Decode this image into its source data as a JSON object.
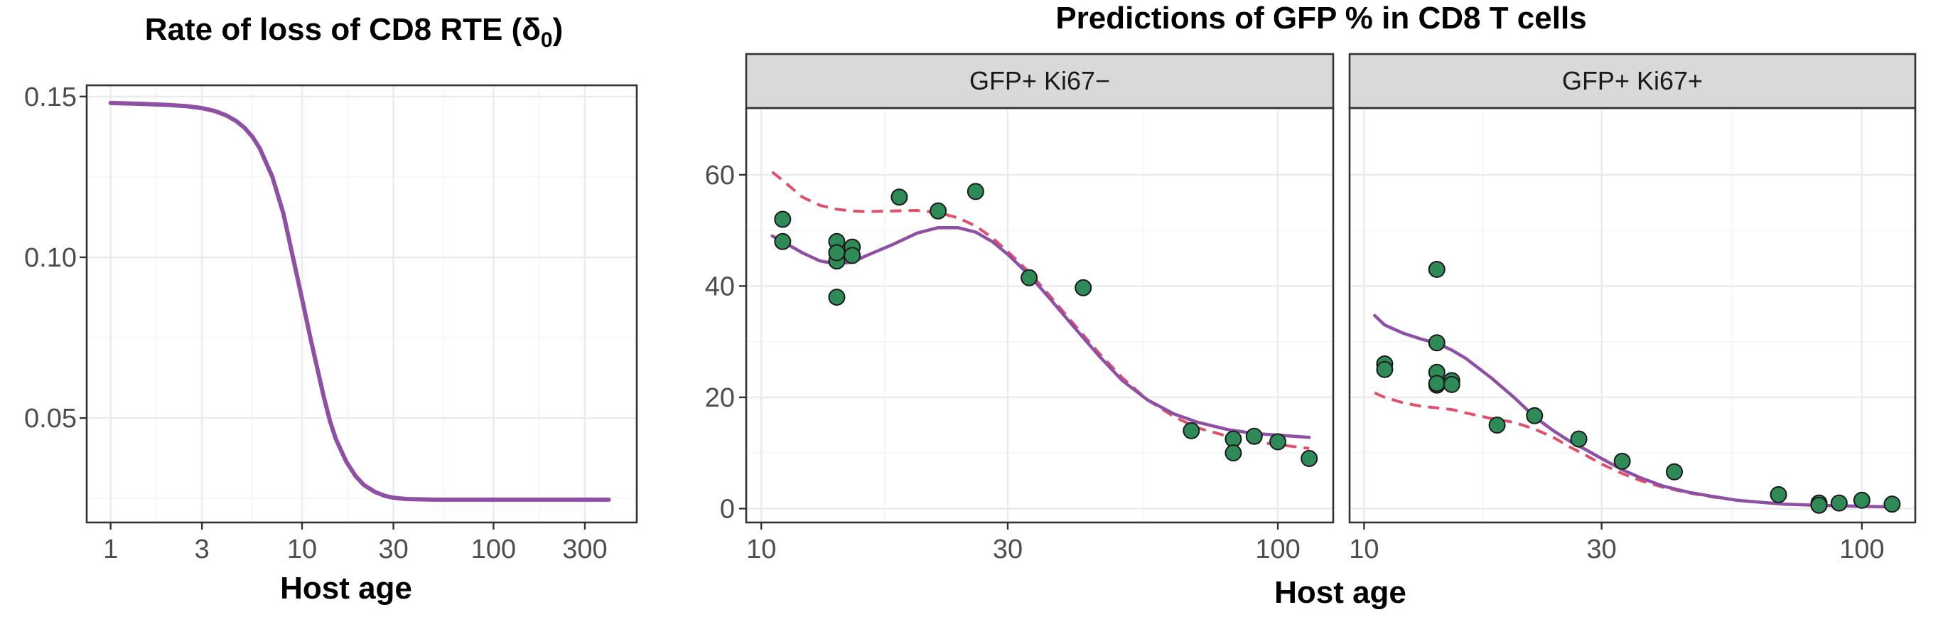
{
  "colors": {
    "fit_line": "#8e4fa5",
    "alt_line": "#e0506a",
    "points": "#2e8b57",
    "point_stroke": "#1a1a1a",
    "strip": "#d9d9d9"
  },
  "chart_data": [
    {
      "type": "line",
      "title": "Rate of loss of CD8 RTE (δ0)",
      "title_main": "Rate of loss of CD8 RTE (δ",
      "title_sub": "0",
      "title_end": ")",
      "xlabel": "Host age",
      "ylabel": "",
      "x_scale": "log",
      "xlim": [
        0.75,
        560
      ],
      "ylim": [
        0.0175,
        0.1535
      ],
      "x_ticks": [
        1,
        3,
        10,
        30,
        100,
        300
      ],
      "x_tick_labels": [
        "1",
        "3",
        "10",
        "30",
        "100",
        "300"
      ],
      "y_ticks": [
        0.05,
        0.1,
        0.15
      ],
      "y_tick_labels": [
        "0.05",
        "0.10",
        "0.15"
      ],
      "grid": true,
      "series": [
        {
          "x": [
            1,
            1.5,
            2,
            2.5,
            3,
            3.5,
            4,
            4.5,
            5,
            5.5,
            6,
            7,
            8,
            9,
            10,
            11,
            12,
            13,
            14,
            15,
            17,
            19,
            21,
            24,
            27,
            30,
            35,
            40,
            50,
            70,
            100,
            200,
            400
          ],
          "y": [
            0.148,
            0.1477,
            0.1474,
            0.147,
            0.1464,
            0.1455,
            0.1442,
            0.1425,
            0.1403,
            0.1375,
            0.134,
            0.125,
            0.1135,
            0.0995,
            0.087,
            0.0755,
            0.0655,
            0.0565,
            0.049,
            0.0435,
            0.0365,
            0.032,
            0.0292,
            0.027,
            0.0258,
            0.0252,
            0.0248,
            0.0247,
            0.0246,
            0.0246,
            0.0246,
            0.0246,
            0.0246
          ]
        }
      ]
    },
    {
      "type": "scatter",
      "title": "Predictions of GFP % in CD8 T cells",
      "xlabel": "Host age",
      "ylabel": "",
      "x_scale": "log",
      "xlim": [
        9.35,
        128
      ],
      "ylim": [
        -2.5,
        72
      ],
      "x_ticks": [
        10,
        30,
        100
      ],
      "x_tick_labels": [
        "10",
        "30",
        "100"
      ],
      "y_ticks": [
        0,
        20,
        40,
        60
      ],
      "y_tick_labels": [
        "0",
        "20",
        "40",
        "60"
      ],
      "grid": true,
      "panels": [
        {
          "name": "GFP+ Ki67−",
          "points": {
            "x": [
              11,
              11,
              14,
              14,
              14,
              14,
              14,
              15,
              15,
              18.5,
              22,
              26,
              33,
              42,
              68,
              82,
              82,
              90,
              100,
              115
            ],
            "y": [
              52,
              48,
              48,
              46,
              44.5,
              46,
              38,
              47,
              45.5,
              56,
              53.5,
              57,
              41.5,
              39.7,
              14,
              12.5,
              10,
              13,
              12,
              9
            ]
          },
          "fit": {
            "x": [
              10.5,
              11,
              12,
              13,
              14,
              15,
              16,
              18,
              20,
              22,
              24,
              26,
              28,
              30,
              33,
              36,
              40,
              45,
              50,
              56,
              63,
              70,
              80,
              90,
              100,
              115
            ],
            "y": [
              49,
              48,
              46,
              44.5,
              44,
              44.3,
              45.5,
              47.5,
              49.5,
              50.5,
              50.5,
              49.7,
              48,
              45.7,
              42,
              38,
              33,
              27.5,
              23,
              19.5,
              17,
              15.5,
              14.2,
              13.5,
              13.2,
              12.8
            ]
          },
          "alt": {
            "x": [
              10.5,
              11,
              12,
              13,
              14,
              15,
              16,
              18,
              20,
              22,
              24,
              26,
              28,
              30,
              33,
              36,
              40,
              45,
              50,
              56,
              63,
              70,
              80,
              90,
              100,
              115
            ],
            "y": [
              60.5,
              59,
              56,
              54.5,
              53.8,
              53.5,
              53.4,
              53.5,
              53.6,
              53.2,
              52.3,
              50.8,
              48.7,
              46.2,
              42.5,
              38.5,
              33.5,
              28,
              23.5,
              19.5,
              16.5,
              14.5,
              13,
              12,
              11.5,
              10.8
            ]
          }
        },
        {
          "name": "GFP+ Ki67+",
          "points": {
            "x": [
              11,
              11,
              14,
              14,
              14,
              14,
              14,
              15,
              15,
              18.5,
              22,
              27,
              33,
              42,
              68,
              82,
              82,
              90,
              100,
              115
            ],
            "y": [
              26,
              25,
              43,
              29.8,
              24.5,
              22.2,
              22.5,
              23,
              22.3,
              15,
              16.7,
              12.5,
              8.5,
              6.6,
              2.5,
              1,
              0.6,
              1,
              1.5,
              0.8
            ]
          },
          "fit": {
            "x": [
              10.5,
              11,
              12,
              13,
              14,
              15,
              16,
              18,
              20,
              22,
              24,
              26,
              28,
              30,
              33,
              36,
              40,
              45,
              50,
              56,
              63,
              70,
              80,
              90,
              100,
              115
            ],
            "y": [
              34.7,
              33,
              31.5,
              30.5,
              29.7,
              28.5,
              27,
              23.5,
              20,
              16.5,
              14,
              12,
              10.5,
              9,
              7,
              5.5,
              4,
              2.9,
              2.2,
              1.5,
              1.1,
              0.8,
              0.6,
              0.5,
              0.4,
              0.3
            ]
          },
          "alt": {
            "x": [
              10.5,
              11,
              12,
              13,
              14,
              15,
              16,
              18,
              20,
              22,
              24,
              26,
              28,
              30,
              33,
              36,
              40,
              45,
              50,
              56,
              63,
              70,
              80,
              90,
              100,
              115
            ],
            "y": [
              20.8,
              20,
              19,
              18.4,
              18.1,
              17.8,
              17.2,
              16.2,
              15.5,
              14.3,
              12.8,
              11,
              9.5,
              8,
              6.3,
              5,
              3.8,
              2.8,
              2.1,
              1.5,
              1.1,
              0.8,
              0.6,
              0.5,
              0.4,
              0.3
            ]
          }
        }
      ]
    }
  ]
}
